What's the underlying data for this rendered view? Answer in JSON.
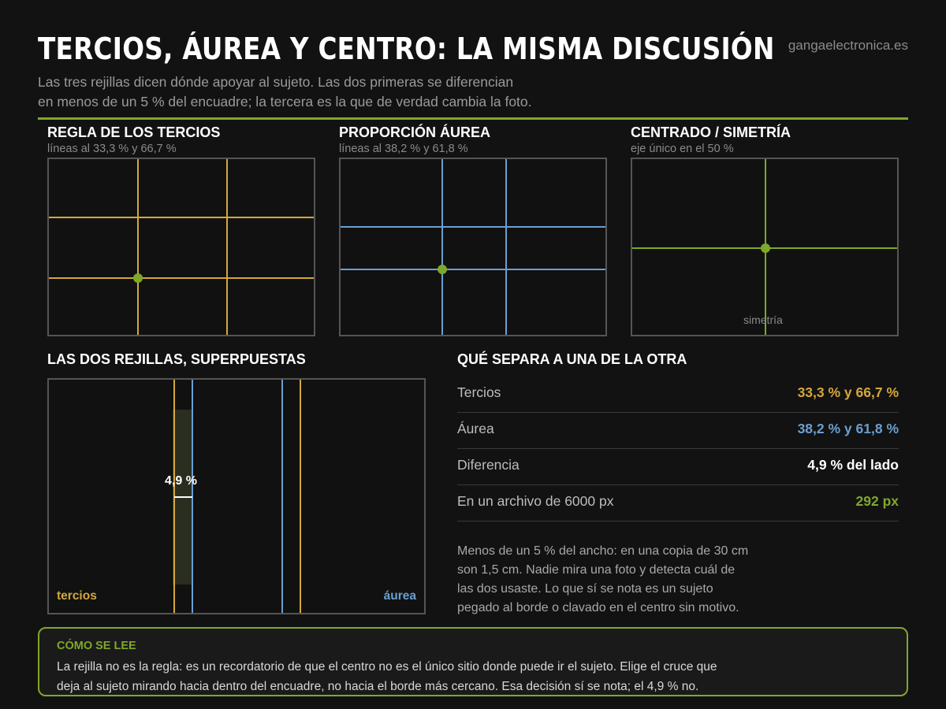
{
  "header": {
    "title": "TERCIOS, ÁUREA Y CENTRO: LA MISMA DISCUSIÓN",
    "brand": "gangaelectronica.es",
    "subtitle_line1": "Las tres rejillas dicen dónde apoyar al sujeto. Las dos primeras se diferencian",
    "subtitle_line2": "en menos de un 5 % del encuadre; la tercera es la que de verdad cambia la foto."
  },
  "colors": {
    "accent": "#7fa82a",
    "tercios": "#d4a83a",
    "aurea": "#6a9fd0",
    "background": "#121212"
  },
  "panels": {
    "tercios": {
      "title": "REGLA DE LOS TERCIOS",
      "subtitle": "líneas al 33,3 % y 66,7 %",
      "lines": [
        33.3,
        66.7
      ]
    },
    "aurea": {
      "title": "PROPORCIÓN ÁUREA",
      "subtitle": "líneas al 38,2 % y 61,8 %",
      "lines": [
        38.2,
        61.8
      ]
    },
    "centrado": {
      "title": "CENTRADO / SIMETRÍA",
      "subtitle": "eje único en el 50 %",
      "axis": 50,
      "axis_label": "simetría"
    }
  },
  "overlay": {
    "title": "LAS DOS REJILLAS, SUPERPUESTAS",
    "gap_label": "4,9 %",
    "tercios_label": "tercios",
    "aurea_label": "áurea"
  },
  "comparison": {
    "title": "QUÉ SEPARA A UNA DE LA OTRA",
    "rows": [
      {
        "label": "Tercios",
        "value": "33,3 % y 66,7 %"
      },
      {
        "label": "Áurea",
        "value": "38,2 % y 61,8 %"
      },
      {
        "label": "Diferencia",
        "value": "4,9 % del lado"
      },
      {
        "label": "En un archivo de 6000 px",
        "value": "292 px"
      }
    ],
    "note_lines": [
      "Menos de un 5 % del ancho: en una copia de 30 cm",
      "son 1,5 cm. Nadie mira una foto y detecta cuál de",
      "las dos usaste. Lo que sí se nota es un sujeto",
      "pegado al borde o clavado en el centro sin motivo."
    ]
  },
  "callout": {
    "title": "CÓMO SE LEE",
    "line1": "La rejilla no es la regla: es un recordatorio de que el centro no es el único sitio donde puede ir el sujeto. Elige el cruce que",
    "line2": "deja al sujeto mirando hacia dentro del encuadre, no hacia el borde más cercano. Esa decisión sí se nota; el 4,9 % no."
  }
}
